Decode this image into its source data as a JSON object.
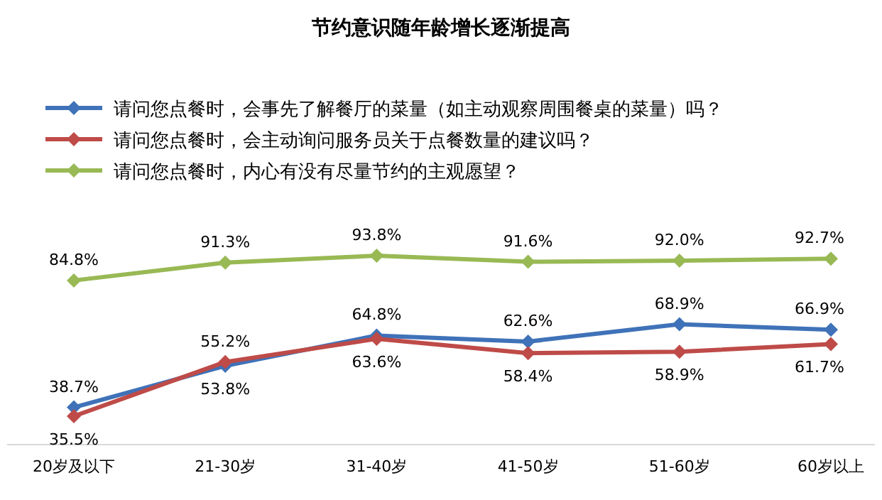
{
  "chart_data": {
    "type": "line",
    "title": "节约意识随年龄增长逐渐提高",
    "categories": [
      "20岁及以下",
      "21-30岁",
      "31-40岁",
      "41-50岁",
      "51-60岁",
      "60岁以上"
    ],
    "series": [
      {
        "name": "请问您点餐时，会事先了解餐厅的菜量（如主动观察周围餐桌的菜量）吗？",
        "color": "#3f72b8",
        "values": [
          38.7,
          53.8,
          64.8,
          62.6,
          68.9,
          66.9
        ],
        "value_labels": [
          "38.7%",
          "53.8%",
          "64.8%",
          "62.6%",
          "68.9%",
          "66.9%"
        ]
      },
      {
        "name": "请问您点餐时，会主动询问服务员关于点餐数量的建议吗？",
        "color": "#be4b48",
        "values": [
          35.5,
          55.2,
          63.6,
          58.4,
          58.9,
          61.7
        ],
        "value_labels": [
          "35.5%",
          "55.2%",
          "63.6%",
          "58.4%",
          "58.9%",
          "61.7%"
        ]
      },
      {
        "name": "请问您点餐时，内心有没有尽量节约的主观愿望？",
        "color": "#98b954",
        "values": [
          84.8,
          91.3,
          93.8,
          91.6,
          92.0,
          92.7
        ],
        "value_labels": [
          "84.8%",
          "91.3%",
          "93.8%",
          "91.6%",
          "92.0%",
          "92.7%"
        ]
      }
    ],
    "legend": "top",
    "marker": "diamond",
    "line_style": "solid"
  }
}
